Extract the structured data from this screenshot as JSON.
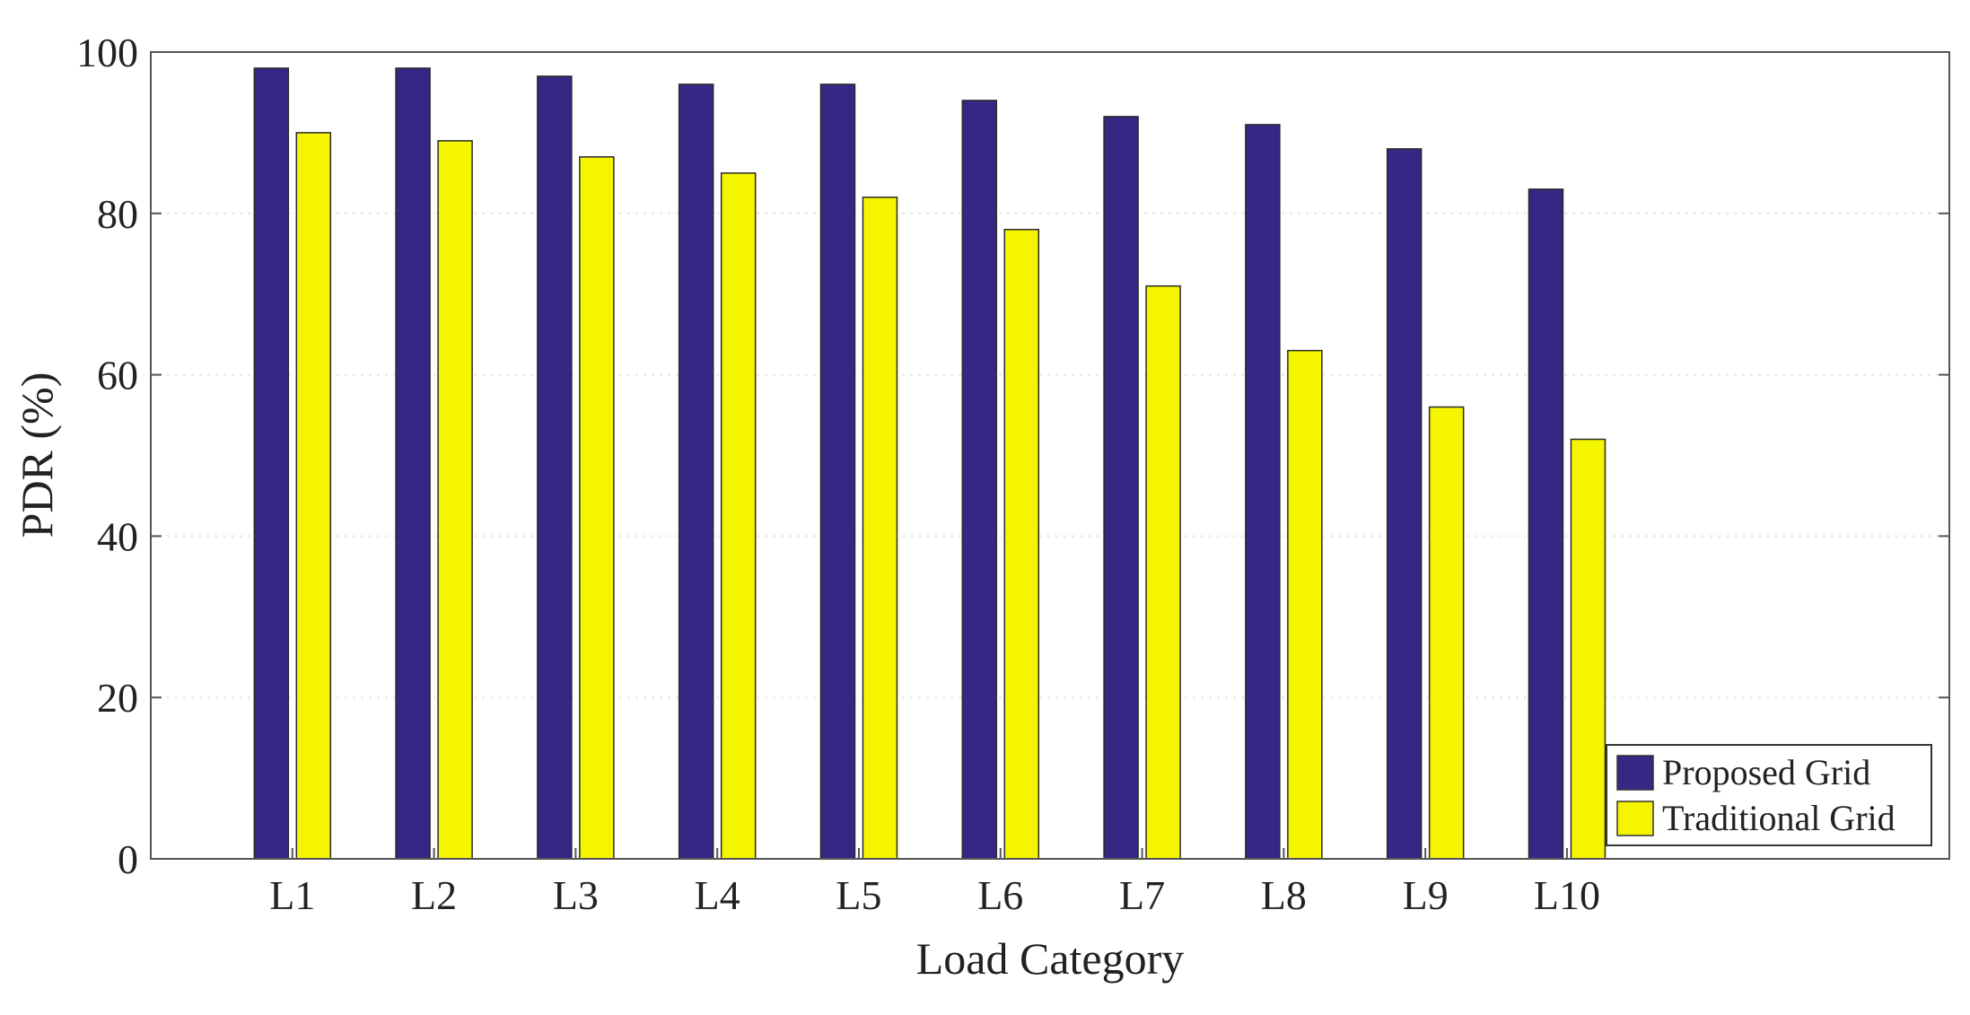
{
  "chart_data": {
    "type": "bar",
    "title": "",
    "xlabel": "Load Category",
    "ylabel": "PDR (%)",
    "ylim": [
      0,
      100
    ],
    "yticks": [
      0,
      20,
      40,
      60,
      80,
      100
    ],
    "grid": true,
    "legend_position": "bottom-right",
    "categories": [
      "L1",
      "L2",
      "L3",
      "L4",
      "L5",
      "L6",
      "L7",
      "L8",
      "L9",
      "L10"
    ],
    "series": [
      {
        "name": "Proposed Grid",
        "color": "#352784",
        "values": [
          98,
          98,
          97,
          96,
          96,
          94,
          92,
          91,
          88,
          83
        ]
      },
      {
        "name": "Traditional Grid",
        "color": "#F5F500",
        "values": [
          90,
          89,
          87,
          85,
          82,
          78,
          71,
          63,
          56,
          52
        ]
      }
    ]
  }
}
